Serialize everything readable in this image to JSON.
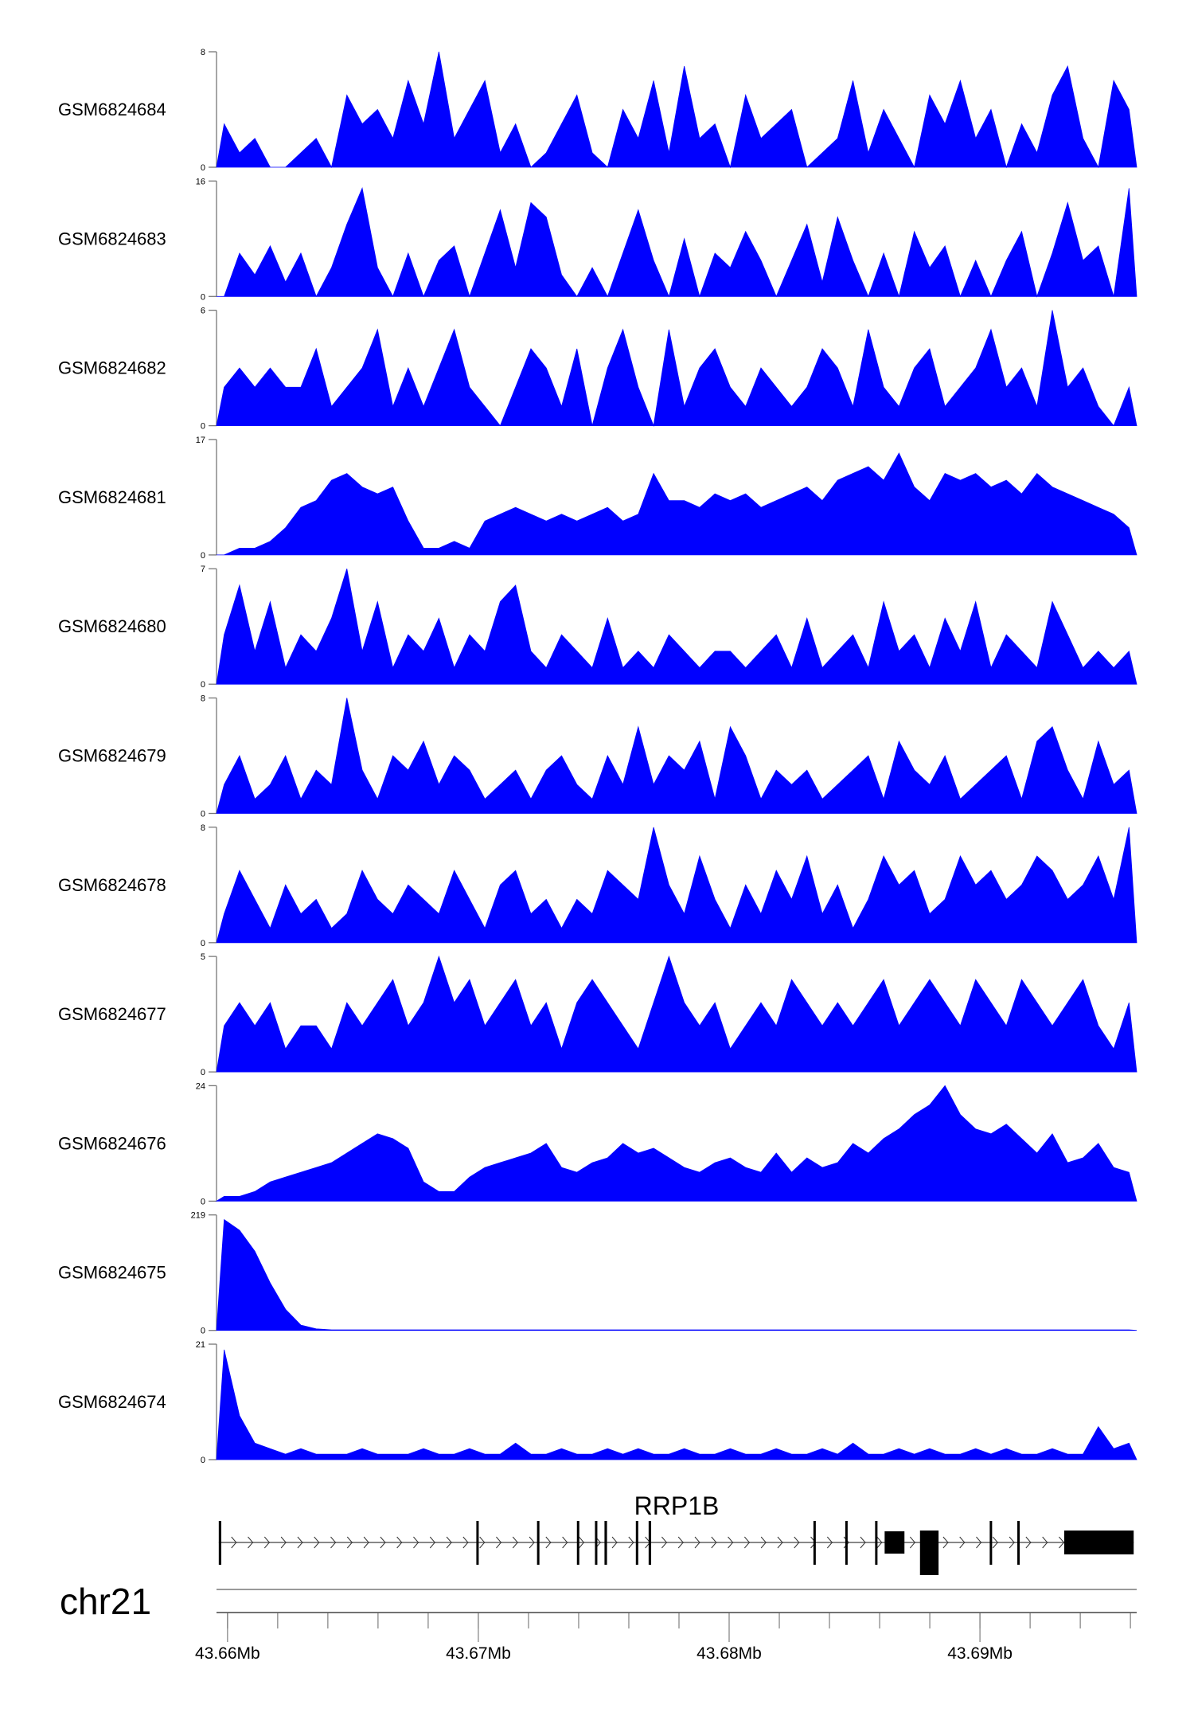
{
  "chart_data": {
    "type": "area",
    "chromosome": "chr21",
    "x_range_mb": [
      43.65956,
      43.69625
    ],
    "x_ticks": [
      {
        "value": 43.66,
        "label": "43.66Mb"
      },
      {
        "value": 43.67,
        "label": "43.67Mb"
      },
      {
        "value": 43.68,
        "label": "43.68Mb"
      },
      {
        "value": 43.69,
        "label": "43.69Mb"
      }
    ],
    "minor_tick_step_mb": 0.002,
    "fill_color": "#0000ff",
    "tracks": [
      {
        "name": "GSM6824684",
        "ymax": 8,
        "ymin_label": "0",
        "ymax_label": "8",
        "values": [
          3,
          1,
          2,
          0,
          0,
          1,
          2,
          0,
          5,
          3,
          4,
          2,
          6,
          3,
          8,
          2,
          4,
          6,
          1,
          3,
          0,
          1,
          3,
          5,
          1,
          0,
          4,
          2,
          6,
          1,
          7,
          2,
          3,
          0,
          5,
          2,
          3,
          4,
          0,
          1,
          2,
          6,
          1,
          4,
          2,
          0,
          5,
          3,
          6,
          2,
          4,
          0,
          3,
          1,
          5,
          7,
          2,
          0,
          6,
          4
        ]
      },
      {
        "name": "GSM6824683",
        "ymax": 16,
        "ymin_label": "0",
        "ymax_label": "16",
        "values": [
          0,
          6,
          3,
          7,
          2,
          6,
          0,
          4,
          10,
          15,
          4,
          0,
          6,
          0,
          5,
          7,
          0,
          6,
          12,
          4,
          13,
          11,
          3,
          0,
          4,
          0,
          6,
          12,
          5,
          0,
          8,
          0,
          6,
          4,
          9,
          5,
          0,
          5,
          10,
          2,
          11,
          5,
          0,
          6,
          0,
          9,
          4,
          7,
          0,
          5,
          0,
          5,
          9,
          0,
          6,
          13,
          5,
          7,
          0,
          15
        ]
      },
      {
        "name": "GSM6824682",
        "ymax": 6,
        "ymin_label": "0",
        "ymax_label": "6",
        "values": [
          2,
          3,
          2,
          3,
          2,
          2,
          4,
          1,
          2,
          3,
          5,
          1,
          3,
          1,
          3,
          5,
          2,
          1,
          0,
          2,
          4,
          3,
          1,
          4,
          0,
          3,
          5,
          2,
          0,
          5,
          1,
          3,
          4,
          2,
          1,
          3,
          2,
          1,
          2,
          4,
          3,
          1,
          5,
          2,
          1,
          3,
          4,
          1,
          2,
          3,
          5,
          2,
          3,
          1,
          6,
          2,
          3,
          1,
          0,
          2
        ]
      },
      {
        "name": "GSM6824681",
        "ymax": 17,
        "ymin_label": "0",
        "ymax_label": "17",
        "values": [
          0,
          1,
          1,
          2,
          4,
          7,
          8,
          11,
          12,
          10,
          9,
          10,
          5,
          1,
          1,
          2,
          1,
          5,
          6,
          7,
          6,
          5,
          6,
          5,
          6,
          7,
          5,
          6,
          12,
          8,
          8,
          7,
          9,
          8,
          9,
          7,
          8,
          9,
          10,
          8,
          11,
          12,
          13,
          11,
          15,
          10,
          8,
          12,
          11,
          12,
          10,
          11,
          9,
          12,
          10,
          9,
          8,
          7,
          6,
          4
        ]
      },
      {
        "name": "GSM6824680",
        "ymax": 7,
        "ymin_label": "0",
        "ymax_label": "7",
        "values": [
          3,
          6,
          2,
          5,
          1,
          3,
          2,
          4,
          7,
          2,
          5,
          1,
          3,
          2,
          4,
          1,
          3,
          2,
          5,
          6,
          2,
          1,
          3,
          2,
          1,
          4,
          1,
          2,
          1,
          3,
          2,
          1,
          2,
          2,
          1,
          2,
          3,
          1,
          4,
          1,
          2,
          3,
          1,
          5,
          2,
          3,
          1,
          4,
          2,
          5,
          1,
          3,
          2,
          1,
          5,
          3,
          1,
          2,
          1,
          2
        ]
      },
      {
        "name": "GSM6824679",
        "ymax": 8,
        "ymin_label": "0",
        "ymax_label": "8",
        "values": [
          2,
          4,
          1,
          2,
          4,
          1,
          3,
          2,
          8,
          3,
          1,
          4,
          3,
          5,
          2,
          4,
          3,
          1,
          2,
          3,
          1,
          3,
          4,
          2,
          1,
          4,
          2,
          6,
          2,
          4,
          3,
          5,
          1,
          6,
          4,
          1,
          3,
          2,
          3,
          1,
          2,
          3,
          4,
          1,
          5,
          3,
          2,
          4,
          1,
          2,
          3,
          4,
          1,
          5,
          6,
          3,
          1,
          5,
          2,
          3
        ]
      },
      {
        "name": "GSM6824678",
        "ymax": 8,
        "ymin_label": "0",
        "ymax_label": "8",
        "values": [
          2,
          5,
          3,
          1,
          4,
          2,
          3,
          1,
          2,
          5,
          3,
          2,
          4,
          3,
          2,
          5,
          3,
          1,
          4,
          5,
          2,
          3,
          1,
          3,
          2,
          5,
          4,
          3,
          8,
          4,
          2,
          6,
          3,
          1,
          4,
          2,
          5,
          3,
          6,
          2,
          4,
          1,
          3,
          6,
          4,
          5,
          2,
          3,
          6,
          4,
          5,
          3,
          4,
          6,
          5,
          3,
          4,
          6,
          3,
          8
        ]
      },
      {
        "name": "GSM6824677",
        "ymax": 5,
        "ymin_label": "0",
        "ymax_label": "5",
        "values": [
          2,
          3,
          2,
          3,
          1,
          2,
          2,
          1,
          3,
          2,
          3,
          4,
          2,
          3,
          5,
          3,
          4,
          2,
          3,
          4,
          2,
          3,
          1,
          3,
          4,
          3,
          2,
          1,
          3,
          5,
          3,
          2,
          3,
          1,
          2,
          3,
          2,
          4,
          3,
          2,
          3,
          2,
          3,
          4,
          2,
          3,
          4,
          3,
          2,
          4,
          3,
          2,
          4,
          3,
          2,
          3,
          4,
          2,
          1,
          3
        ]
      },
      {
        "name": "GSM6824676",
        "ymax": 24,
        "ymin_label": "0",
        "ymax_label": "24",
        "values": [
          1,
          1,
          2,
          4,
          5,
          6,
          7,
          8,
          10,
          12,
          14,
          13,
          11,
          4,
          2,
          2,
          5,
          7,
          8,
          9,
          10,
          12,
          7,
          6,
          8,
          9,
          12,
          10,
          11,
          9,
          7,
          6,
          8,
          9,
          7,
          6,
          10,
          6,
          9,
          7,
          8,
          12,
          10,
          13,
          15,
          18,
          20,
          24,
          18,
          15,
          14,
          16,
          13,
          10,
          14,
          8,
          9,
          12,
          7,
          6
        ]
      },
      {
        "name": "GSM6824675",
        "ymax": 219,
        "ymin_label": "0",
        "ymax_label": "219",
        "values": [
          210,
          190,
          150,
          90,
          40,
          10,
          3,
          1,
          1,
          1,
          1,
          1,
          1,
          1,
          1,
          1,
          1,
          1,
          1,
          1,
          1,
          1,
          1,
          1,
          1,
          1,
          1,
          1,
          1,
          1,
          1,
          1,
          1,
          1,
          1,
          1,
          1,
          1,
          1,
          1,
          1,
          1,
          1,
          1,
          1,
          1,
          1,
          1,
          1,
          1,
          1,
          1,
          1,
          1,
          1,
          1,
          1,
          1,
          1,
          1
        ]
      },
      {
        "name": "GSM6824674",
        "ymax": 21,
        "ymin_label": "0",
        "ymax_label": "21",
        "values": [
          20,
          8,
          3,
          2,
          1,
          2,
          1,
          1,
          1,
          2,
          1,
          1,
          1,
          2,
          1,
          1,
          2,
          1,
          1,
          3,
          1,
          1,
          2,
          1,
          1,
          2,
          1,
          2,
          1,
          1,
          2,
          1,
          1,
          2,
          1,
          1,
          2,
          1,
          1,
          2,
          1,
          3,
          1,
          1,
          2,
          1,
          2,
          1,
          1,
          2,
          1,
          2,
          1,
          1,
          2,
          1,
          1,
          6,
          2,
          3
        ]
      }
    ],
    "gene": {
      "name": "RRP1B",
      "strand": "+",
      "exons_mb": [
        [
          43.65965,
          43.65975
        ],
        [
          43.66992,
          43.66998
        ],
        [
          43.67234,
          43.6724
        ],
        [
          43.67393,
          43.67399
        ],
        [
          43.67465,
          43.67471
        ],
        [
          43.67503,
          43.67513
        ],
        [
          43.67628,
          43.67634
        ],
        [
          43.67679,
          43.67689
        ],
        [
          43.68336,
          43.68342
        ],
        [
          43.68463,
          43.68469
        ],
        [
          43.68582,
          43.68588
        ],
        [
          43.6862,
          43.68699
        ],
        [
          43.68761,
          43.68835
        ],
        [
          43.69039,
          43.69045
        ],
        [
          43.69149,
          43.69155
        ],
        [
          43.69336,
          43.69613
        ]
      ]
    }
  }
}
